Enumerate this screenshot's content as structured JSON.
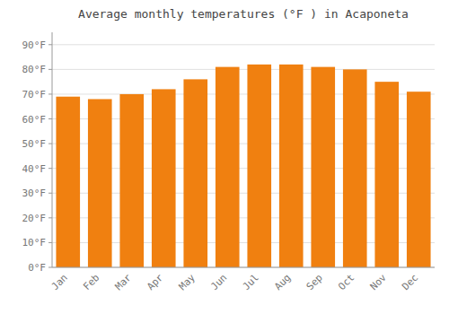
{
  "chart_data": {
    "type": "bar",
    "title": "Average monthly temperatures (°F ) in Acaponeta",
    "categories": [
      "Jan",
      "Feb",
      "Mar",
      "Apr",
      "May",
      "Jun",
      "Jul",
      "Aug",
      "Sep",
      "Oct",
      "Nov",
      "Dec"
    ],
    "values": [
      69,
      68,
      70,
      72,
      76,
      81,
      82,
      82,
      81,
      80,
      75,
      71
    ],
    "color": "#F08010",
    "ylim": [
      0,
      95
    ],
    "yticks": [
      {
        "value": 0,
        "label": "0°F"
      },
      {
        "value": 10,
        "label": "10°F"
      },
      {
        "value": 20,
        "label": "20°F"
      },
      {
        "value": 30,
        "label": "30°F"
      },
      {
        "value": 40,
        "label": "40°F"
      },
      {
        "value": 50,
        "label": "50°F"
      },
      {
        "value": 60,
        "label": "60°F"
      },
      {
        "value": 70,
        "label": "70°F"
      },
      {
        "value": 80,
        "label": "80°F"
      },
      {
        "value": 90,
        "label": "90°F"
      }
    ],
    "grid": true
  }
}
